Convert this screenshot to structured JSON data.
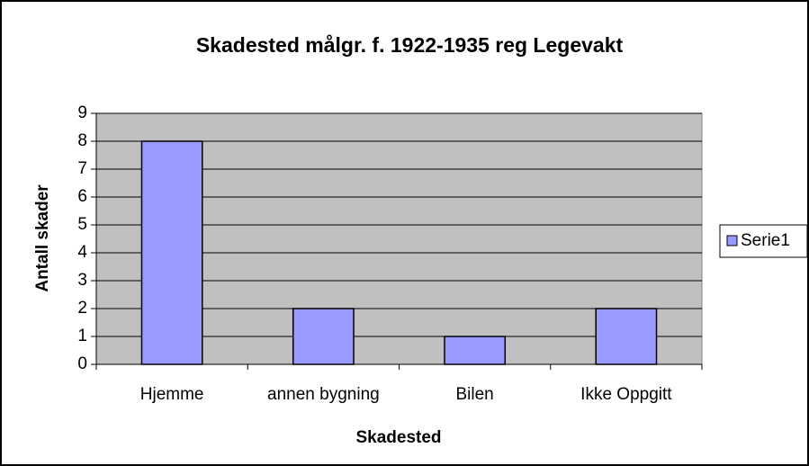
{
  "chart_data": {
    "type": "bar",
    "title": "Skadested målgr. f. 1922-1935 reg Legevakt",
    "x_label": "Skadested",
    "y_label": "Antall skader",
    "categories": [
      "Hjemme",
      "annen bygning",
      "Bilen",
      "Ikke Oppgitt"
    ],
    "series": [
      {
        "name": "Serie1",
        "color": "#9999ff",
        "values": [
          8,
          2,
          1,
          2
        ]
      }
    ],
    "ylim": [
      0,
      9
    ],
    "yticks": [
      0,
      1,
      2,
      3,
      4,
      5,
      6,
      7,
      8,
      9
    ],
    "grid": true,
    "plot_background": "#c0c0c0",
    "legend": "right"
  }
}
